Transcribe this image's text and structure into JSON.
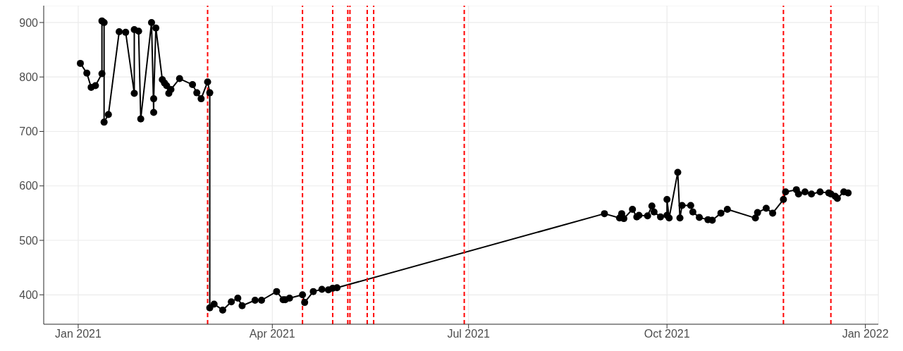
{
  "chart_data": {
    "type": "line",
    "marker": "circle",
    "line_style": "solid",
    "grid": true,
    "x": [
      "2021-01-02",
      "2021-01-05",
      "2021-01-07",
      "2021-01-09",
      "2021-01-12",
      "2021-01-12",
      "2021-01-13",
      "2021-01-13",
      "2021-01-15",
      "2021-01-20",
      "2021-01-23",
      "2021-01-27",
      "2021-01-27",
      "2021-01-29",
      "2021-01-30",
      "2021-02-04",
      "2021-02-05",
      "2021-02-05",
      "2021-02-06",
      "2021-02-09",
      "2021-02-10",
      "2021-02-11",
      "2021-02-12",
      "2021-02-13",
      "2021-02-17",
      "2021-02-23",
      "2021-02-25",
      "2021-02-27",
      "2021-03-02",
      "2021-03-03",
      "2021-03-03",
      "2021-03-05",
      "2021-03-09",
      "2021-03-13",
      "2021-03-16",
      "2021-03-18",
      "2021-03-24",
      "2021-03-27",
      "2021-04-03",
      "2021-04-06",
      "2021-04-07",
      "2021-04-09",
      "2021-04-15",
      "2021-04-16",
      "2021-04-20",
      "2021-04-24",
      "2021-04-27",
      "2021-04-29",
      "2021-05-01",
      "2021-09-02",
      "2021-09-09",
      "2021-09-10",
      "2021-09-11",
      "2021-09-15",
      "2021-09-17",
      "2021-09-18",
      "2021-09-22",
      "2021-09-24",
      "2021-09-25",
      "2021-09-28",
      "2021-10-01",
      "2021-10-01",
      "2021-10-02",
      "2021-10-06",
      "2021-10-07",
      "2021-10-08",
      "2021-10-12",
      "2021-10-13",
      "2021-10-16",
      "2021-10-20",
      "2021-10-22",
      "2021-10-26",
      "2021-10-29",
      "2021-11-11",
      "2021-11-12",
      "2021-11-16",
      "2021-11-19",
      "2021-11-24",
      "2021-11-25",
      "2021-11-30",
      "2021-12-01",
      "2021-12-04",
      "2021-12-07",
      "2021-12-11",
      "2021-12-15",
      "2021-12-16",
      "2021-12-18",
      "2021-12-19",
      "2021-12-22",
      "2021-12-24"
    ],
    "series": [
      {
        "color": "#000000",
        "values": [
          825,
          807,
          781,
          784,
          806,
          903,
          900,
          717,
          731,
          883,
          882,
          770,
          887,
          884,
          723,
          900,
          735,
          760,
          890,
          795,
          789,
          784,
          770,
          777,
          797,
          786,
          771,
          760,
          791,
          771,
          376,
          383,
          372,
          387,
          394,
          380,
          390,
          390,
          406,
          391,
          391,
          394,
          400,
          386,
          406,
          410,
          409,
          412,
          413,
          549,
          541,
          549,
          540,
          557,
          543,
          546,
          545,
          563,
          552,
          543,
          546,
          575,
          541,
          625,
          541,
          564,
          564,
          552,
          542,
          538,
          537,
          550,
          557,
          541,
          551,
          559,
          550,
          575,
          589,
          593,
          585,
          589,
          585,
          589,
          587,
          585,
          581,
          577,
          589,
          587
        ]
      }
    ],
    "xlim": [
      "2020-12-16",
      "2022-01-07"
    ],
    "xticks": [
      {
        "value": "2021-01-01",
        "label": "Jan 2021"
      },
      {
        "value": "2021-04-01",
        "label": "Apr 2021"
      },
      {
        "value": "2021-07-01",
        "label": "Jul 2021"
      },
      {
        "value": "2021-10-01",
        "label": "Oct 2021"
      },
      {
        "value": "2022-01-01",
        "label": "Jan 2022"
      }
    ],
    "ylim": [
      346,
      931
    ],
    "yticks": [
      400,
      500,
      600,
      700,
      800,
      900
    ],
    "ref_lines": [
      {
        "axis": "x",
        "value": "2021-03-02",
        "color": "#ff0000",
        "line_style": "dashed"
      },
      {
        "axis": "x",
        "value": "2021-04-15",
        "color": "#ff0000",
        "line_style": "dashed"
      },
      {
        "axis": "x",
        "value": "2021-04-29",
        "color": "#ff0000",
        "line_style": "dashed"
      },
      {
        "axis": "x",
        "value": "2021-05-06",
        "color": "#ff0000",
        "line_style": "dashed"
      },
      {
        "axis": "x",
        "value": "2021-05-07",
        "color": "#ff0000",
        "line_style": "dashed"
      },
      {
        "axis": "x",
        "value": "2021-05-15",
        "color": "#ff0000",
        "line_style": "dashed"
      },
      {
        "axis": "x",
        "value": "2021-05-18",
        "color": "#ff0000",
        "line_style": "dashed"
      },
      {
        "axis": "x",
        "value": "2021-06-29",
        "color": "#ff0000",
        "line_style": "dashed"
      },
      {
        "axis": "x",
        "value": "2021-11-24",
        "color": "#ff0000",
        "line_style": "dashed"
      },
      {
        "axis": "x",
        "value": "2021-12-16",
        "color": "#ff0000",
        "line_style": "dashed"
      }
    ]
  }
}
